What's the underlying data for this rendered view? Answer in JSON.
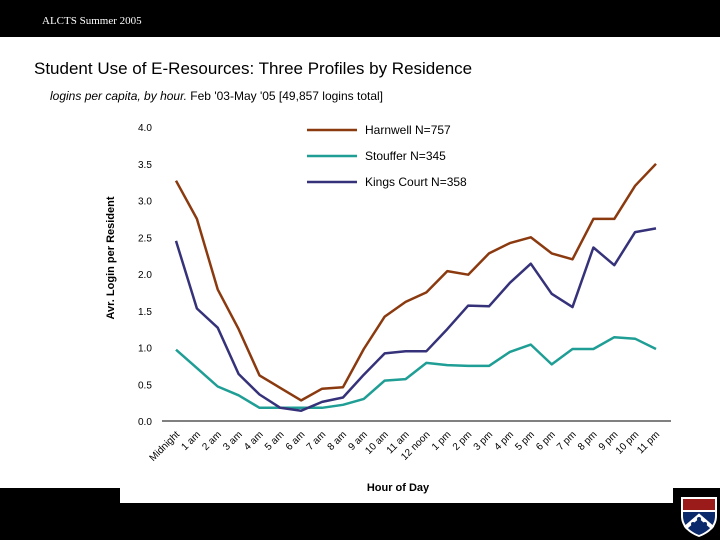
{
  "header": {
    "conference": "ALCTS Summer 2005"
  },
  "slide": {
    "title": "Student Use of E-Resources: Three Profiles by Residence",
    "subtitle_italic": "logins per capita, by hour.",
    "subtitle_rest": " Feb '03-May '05  [49,857 logins total]"
  },
  "chart_data": {
    "type": "line",
    "xlabel": "Hour of Day",
    "ylabel": "Avr. Login per Resident",
    "ylim": [
      0,
      4
    ],
    "yticks": [
      "0.0",
      "0.5",
      "1.0",
      "1.5",
      "2.0",
      "2.5",
      "3.0",
      "3.5",
      "4.0"
    ],
    "categories": [
      "Midnight",
      "1 am",
      "2 am",
      "3 am",
      "4 am",
      "5 am",
      "6 am",
      "7 am",
      "8 am",
      "9 am",
      "10 am",
      "11 am",
      "12 noon",
      "1 pm",
      "2 pm",
      "3 pm",
      "4 pm",
      "5 pm",
      "6 pm",
      "7 pm",
      "8 pm",
      "9 pm",
      "10 pm",
      "11 pm"
    ],
    "legend_position": "top-center",
    "grid": false,
    "series": [
      {
        "name": "Harnwell  N=757",
        "color": "#8B3A0F",
        "values": [
          3.27,
          2.75,
          1.79,
          1.25,
          0.62,
          0.45,
          0.28,
          0.44,
          0.46,
          0.98,
          1.42,
          1.62,
          1.75,
          2.04,
          1.99,
          2.28,
          2.42,
          2.5,
          2.28,
          2.2,
          2.75,
          2.75,
          3.2,
          3.5
        ]
      },
      {
        "name": "Stouffer   N=345",
        "color": "#1F9E95",
        "values": [
          0.97,
          0.72,
          0.47,
          0.35,
          0.18,
          0.18,
          0.18,
          0.18,
          0.22,
          0.3,
          0.55,
          0.57,
          0.79,
          0.76,
          0.75,
          0.75,
          0.94,
          1.04,
          0.77,
          0.98,
          0.98,
          1.14,
          1.12,
          0.98
        ]
      },
      {
        "name": "Kings Court  N=358",
        "color": "#35327A",
        "values": [
          2.45,
          1.53,
          1.27,
          0.64,
          0.36,
          0.18,
          0.14,
          0.26,
          0.32,
          0.63,
          0.92,
          0.95,
          0.95,
          1.25,
          1.57,
          1.56,
          1.88,
          2.14,
          1.73,
          1.55,
          2.36,
          2.12,
          2.57,
          2.62
        ]
      }
    ]
  },
  "logo": {
    "name": "university-shield-logo"
  }
}
